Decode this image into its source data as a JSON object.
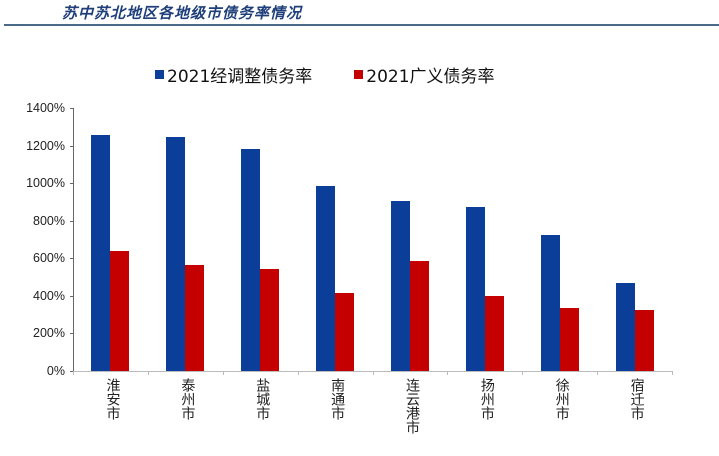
{
  "header": {
    "title": "苏中苏北地区各地级市债务率情况"
  },
  "colors": {
    "series_adjusted": "#0b3e99",
    "series_broad": "#c40000",
    "title": "#1f3f7a"
  },
  "legend": {
    "items": [
      {
        "label": "2021经调整债务率",
        "color": "#0b3e99"
      },
      {
        "label": "2021广义债务率",
        "color": "#c40000"
      }
    ]
  },
  "y_axis": {
    "ticks": [
      "0%",
      "200%",
      "400%",
      "600%",
      "800%",
      "1000%",
      "1200%",
      "1400%"
    ]
  },
  "chart_data": {
    "type": "bar",
    "title": "苏中苏北地区各地级市债务率情况",
    "xlabel": "",
    "ylabel": "",
    "ylim": [
      0,
      1400
    ],
    "y_tick_format": "percent",
    "grid": false,
    "legend_position": "top",
    "categories": [
      "淮安市",
      "泰州市",
      "盐城市",
      "南通市",
      "连云港市",
      "扬州市",
      "徐州市",
      "宿迁市"
    ],
    "series": [
      {
        "name": "2021经调整债务率",
        "color": "#0b3e99",
        "values": [
          1256,
          1245,
          1181,
          985,
          905,
          873,
          724,
          468
        ]
      },
      {
        "name": "2021广义债务率",
        "color": "#c40000",
        "values": [
          639,
          564,
          543,
          415,
          585,
          399,
          335,
          325
        ]
      }
    ]
  }
}
